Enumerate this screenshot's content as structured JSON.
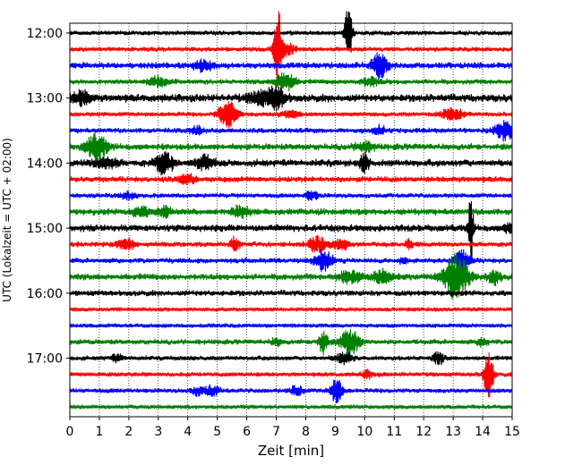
{
  "chart_data": {
    "type": "line",
    "title": "",
    "xlabel": "Zeit  [min]",
    "ylabel": "UTC (Lokalzeit = UTC + 02:00)",
    "xlim": [
      0,
      15
    ],
    "ylim_rows": [
      -0.6,
      23.6
    ],
    "x_ticks": [
      "0",
      "1",
      "2",
      "3",
      "4",
      "5",
      "6",
      "7",
      "8",
      "9",
      "10",
      "11",
      "12",
      "13",
      "14",
      "15"
    ],
    "y_ticks": [
      {
        "label": "12:00",
        "row": 0
      },
      {
        "label": "13:00",
        "row": 4
      },
      {
        "label": "14:00",
        "row": 8
      },
      {
        "label": "15:00",
        "row": 12
      },
      {
        "label": "16:00",
        "row": 16
      },
      {
        "label": "17:00",
        "row": 20
      }
    ],
    "grid": "vertical-dotted",
    "colors": [
      "#000000",
      "#ff0000",
      "#0000ff",
      "#008000"
    ],
    "trace_interval_min": 15,
    "series": [
      {
        "start": "12:00",
        "color": "#000000",
        "noise": 0.35,
        "events": [
          [
            9.45,
            5.5,
            0.12
          ]
        ]
      },
      {
        "start": "12:15",
        "color": "#ff0000",
        "noise": 0.35,
        "events": [
          [
            7.05,
            7.5,
            0.12
          ],
          [
            7.3,
            1.2,
            0.3
          ]
        ]
      },
      {
        "start": "12:30",
        "color": "#0000ff",
        "noise": 0.5,
        "events": [
          [
            10.5,
            2.2,
            0.25
          ],
          [
            4.5,
            0.9,
            0.3
          ]
        ]
      },
      {
        "start": "12:45",
        "color": "#008000",
        "noise": 0.4,
        "events": [
          [
            7.3,
            1.8,
            0.3
          ],
          [
            3.0,
            0.8,
            0.3
          ],
          [
            10.2,
            0.8,
            0.3
          ]
        ]
      },
      {
        "start": "13:00",
        "color": "#000000",
        "noise": 0.6,
        "events": [
          [
            7.0,
            1.8,
            0.3
          ],
          [
            0.4,
            1.2,
            0.3
          ],
          [
            6.4,
            1.0,
            0.4
          ]
        ]
      },
      {
        "start": "13:15",
        "color": "#ff0000",
        "noise": 0.35,
        "events": [
          [
            5.35,
            2.5,
            0.3
          ],
          [
            13.0,
            1.0,
            0.4
          ],
          [
            7.5,
            0.7,
            0.3
          ]
        ]
      },
      {
        "start": "13:30",
        "color": "#0000ff",
        "noise": 0.4,
        "events": [
          [
            14.8,
            1.8,
            0.35
          ],
          [
            10.5,
            0.8,
            0.2
          ],
          [
            4.3,
            0.8,
            0.2
          ]
        ]
      },
      {
        "start": "13:45",
        "color": "#008000",
        "noise": 0.5,
        "events": [
          [
            0.9,
            2.3,
            0.35
          ],
          [
            10.0,
            0.8,
            0.3
          ]
        ]
      },
      {
        "start": "14:00",
        "color": "#000000",
        "noise": 0.55,
        "events": [
          [
            3.2,
            1.8,
            0.3
          ],
          [
            10.0,
            1.6,
            0.15
          ],
          [
            4.6,
            1.2,
            0.3
          ],
          [
            1.2,
            0.9,
            0.4
          ]
        ]
      },
      {
        "start": "14:15",
        "color": "#ff0000",
        "noise": 0.45,
        "events": [
          [
            4.0,
            0.8,
            0.3
          ]
        ]
      },
      {
        "start": "14:30",
        "color": "#0000ff",
        "noise": 0.35,
        "events": [
          [
            8.2,
            0.9,
            0.2
          ],
          [
            2.0,
            0.6,
            0.3
          ]
        ]
      },
      {
        "start": "14:45",
        "color": "#008000",
        "noise": 0.5,
        "events": [
          [
            3.2,
            1.0,
            0.2
          ],
          [
            5.8,
            1.1,
            0.3
          ],
          [
            2.4,
            0.8,
            0.3
          ]
        ]
      },
      {
        "start": "15:00",
        "color": "#000000",
        "noise": 0.55,
        "events": [
          [
            13.6,
            6.5,
            0.08
          ],
          [
            14.9,
            1.0,
            0.15
          ]
        ]
      },
      {
        "start": "15:15",
        "color": "#ff0000",
        "noise": 0.4,
        "events": [
          [
            1.9,
            1.1,
            0.3
          ],
          [
            5.6,
            1.3,
            0.15
          ],
          [
            8.4,
            1.3,
            0.3
          ],
          [
            9.2,
            1.0,
            0.25
          ],
          [
            11.5,
            1.0,
            0.12
          ]
        ]
      },
      {
        "start": "15:30",
        "color": "#0000ff",
        "noise": 0.4,
        "events": [
          [
            8.6,
            1.9,
            0.3
          ],
          [
            13.3,
            2.0,
            0.25
          ],
          [
            11.3,
            0.7,
            0.12
          ]
        ]
      },
      {
        "start": "15:45",
        "color": "#008000",
        "noise": 0.5,
        "events": [
          [
            13.1,
            4.0,
            0.4
          ],
          [
            14.4,
            1.5,
            0.2
          ],
          [
            10.6,
            1.2,
            0.3
          ],
          [
            9.5,
            1.0,
            0.4
          ]
        ]
      },
      {
        "start": "16:00",
        "color": "#000000",
        "noise": 0.45,
        "events": []
      },
      {
        "start": "16:15",
        "color": "#ff0000",
        "noise": 0.3,
        "events": []
      },
      {
        "start": "16:30",
        "color": "#0000ff",
        "noise": 0.3,
        "events": []
      },
      {
        "start": "16:45",
        "color": "#008000",
        "noise": 0.4,
        "events": [
          [
            8.6,
            2.2,
            0.15
          ],
          [
            9.5,
            2.4,
            0.3
          ],
          [
            14.0,
            0.8,
            0.15
          ],
          [
            7.0,
            0.6,
            0.2
          ]
        ]
      },
      {
        "start": "17:00",
        "color": "#000000",
        "noise": 0.35,
        "events": [
          [
            9.3,
            1.0,
            0.3
          ],
          [
            12.5,
            1.0,
            0.2
          ],
          [
            1.6,
            0.6,
            0.2
          ]
        ]
      },
      {
        "start": "17:15",
        "color": "#ff0000",
        "noise": 0.35,
        "events": [
          [
            14.2,
            4.5,
            0.15
          ],
          [
            10.1,
            0.6,
            0.2
          ]
        ]
      },
      {
        "start": "17:30",
        "color": "#0000ff",
        "noise": 0.35,
        "events": [
          [
            9.05,
            2.2,
            0.2
          ],
          [
            7.7,
            1.0,
            0.2
          ],
          [
            4.8,
            0.8,
            0.3
          ],
          [
            4.3,
            0.6,
            0.2
          ]
        ]
      },
      {
        "start": "17:45",
        "color": "#008000",
        "noise": 0.3,
        "events": []
      }
    ]
  }
}
